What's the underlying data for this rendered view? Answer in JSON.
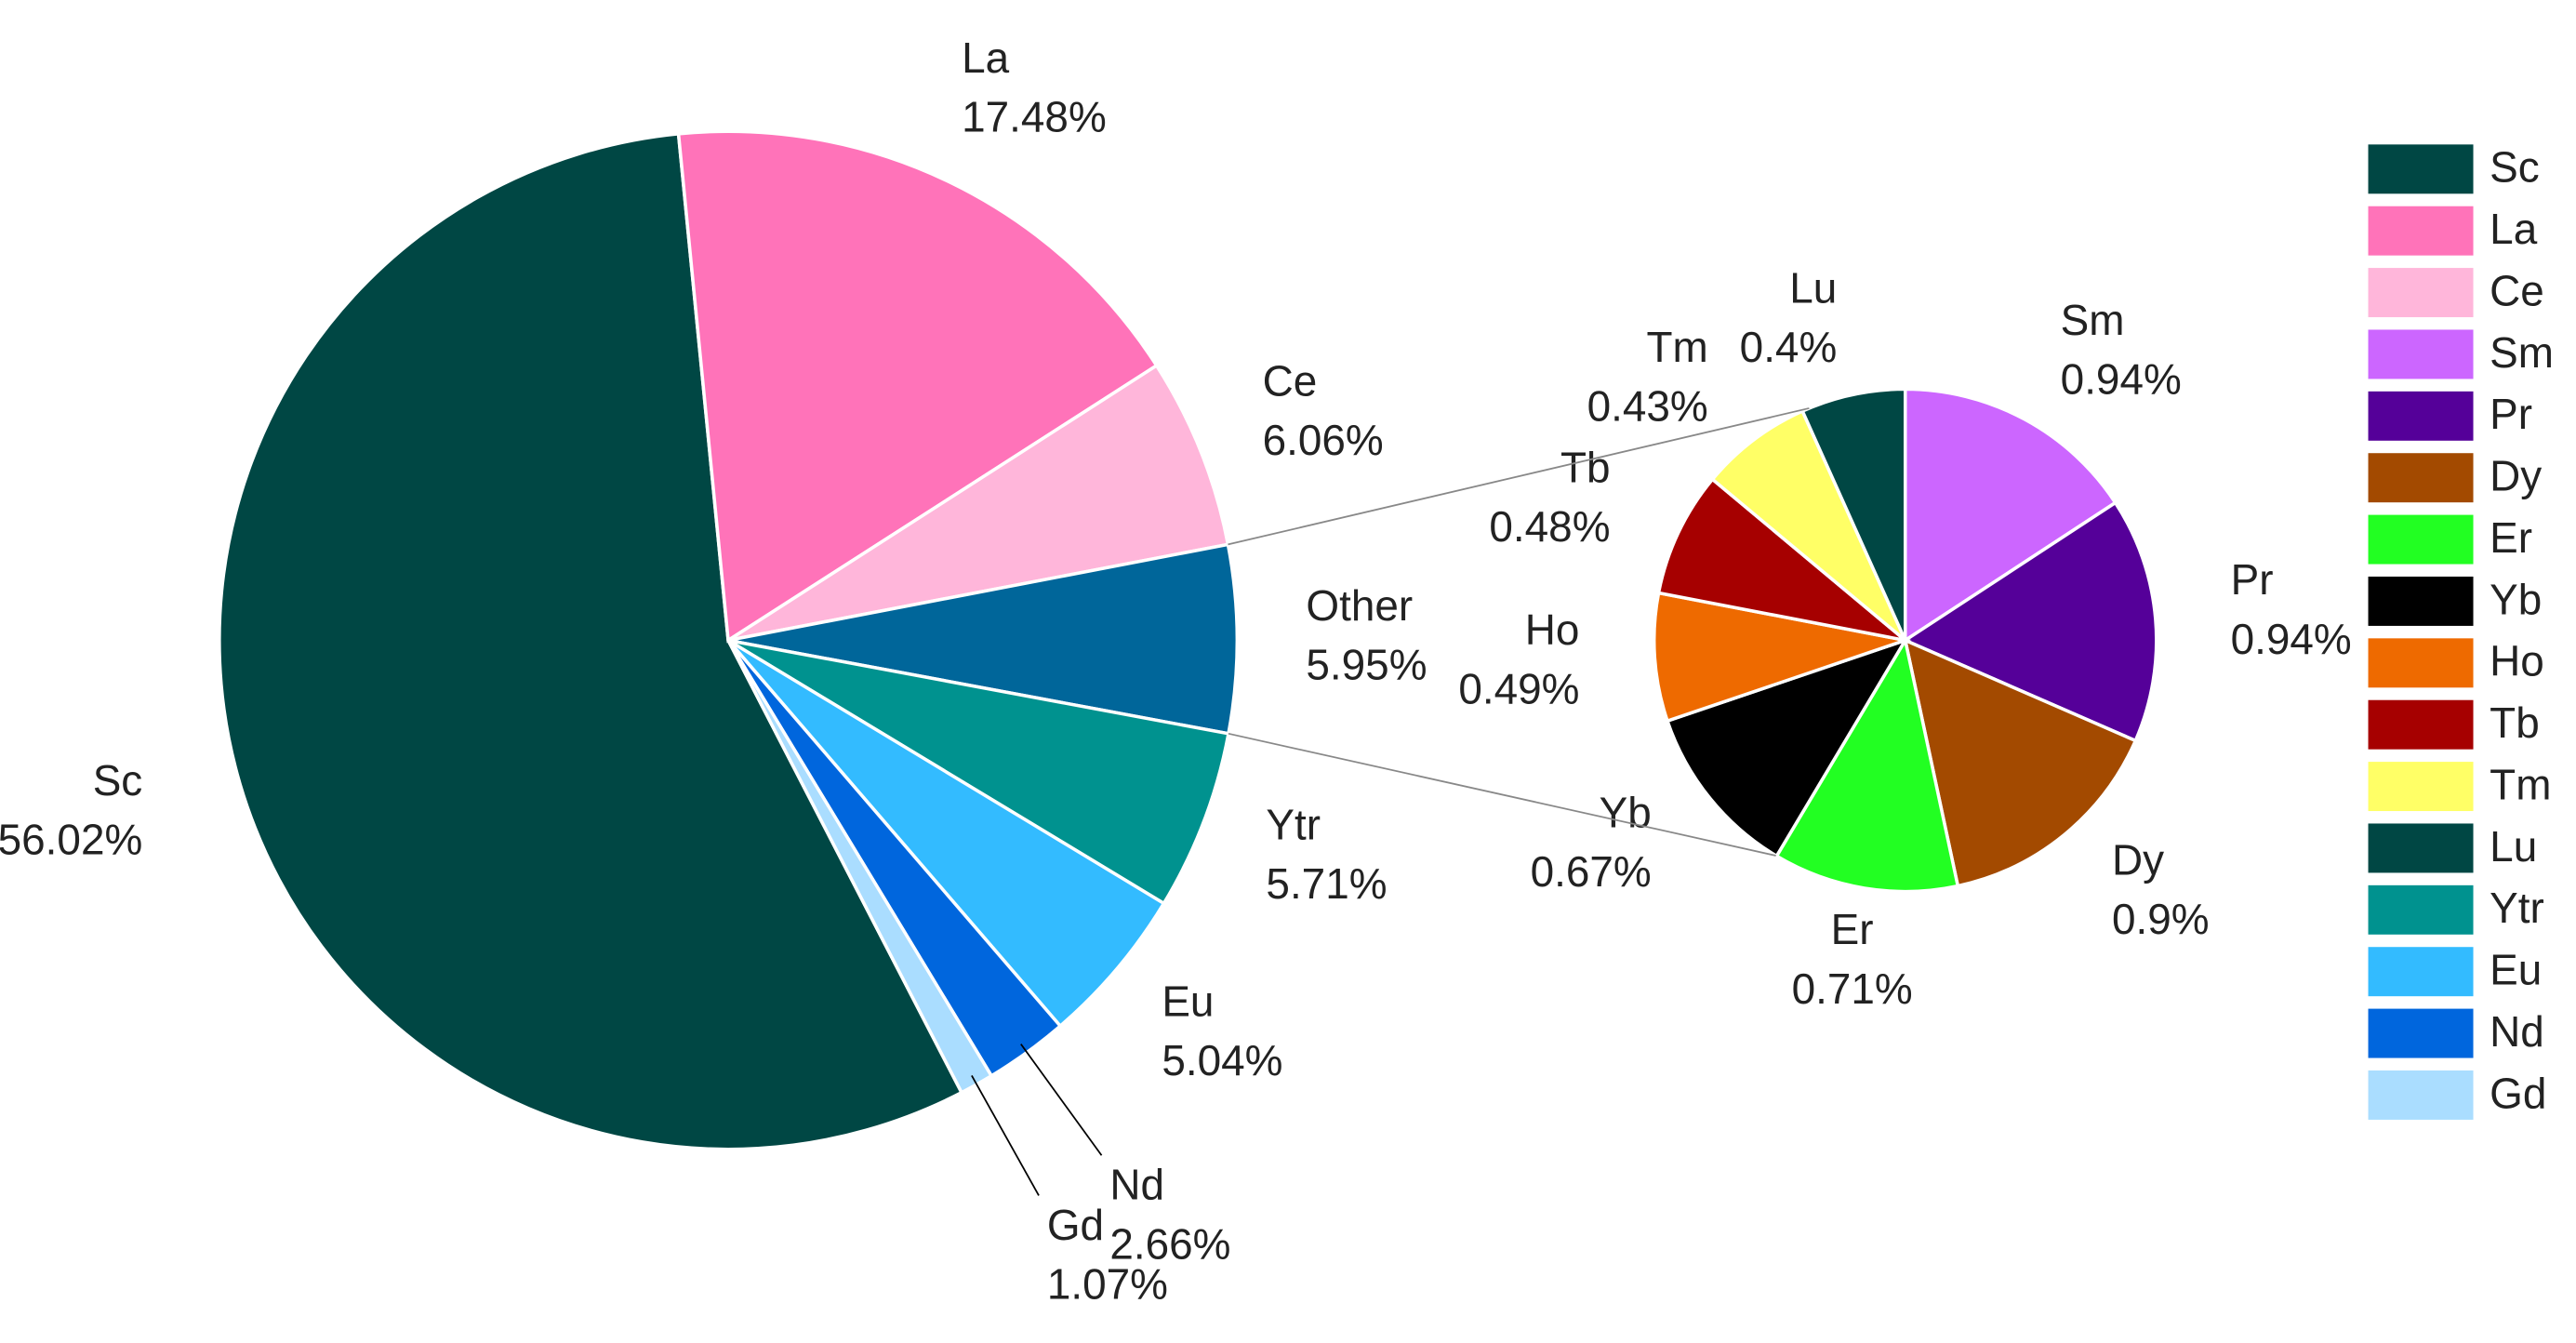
{
  "chart_data": [
    {
      "type": "pie",
      "categories": [
        "Sc",
        "La",
        "Ce",
        "Other",
        "Ytr",
        "Eu",
        "Nd",
        "Gd"
      ],
      "values": [
        56.02,
        17.48,
        6.06,
        5.95,
        5.71,
        5.04,
        2.66,
        1.07
      ],
      "value_labels": [
        "56.02%",
        "17.48%",
        "6.06%",
        "5.95%",
        "5.71%",
        "5.04%",
        "2.66%",
        "1.07%"
      ],
      "colors": [
        "#004744",
        "#ff73b9",
        "#ffb6da",
        "#00669a",
        "#00928f",
        "#33bbff",
        "#0066dd",
        "#aaddff"
      ]
    },
    {
      "type": "pie",
      "categories": [
        "Sm",
        "Pr",
        "Dy",
        "Er",
        "Yb",
        "Ho",
        "Tb",
        "Tm",
        "Lu"
      ],
      "values": [
        0.94,
        0.94,
        0.9,
        0.71,
        0.67,
        0.49,
        0.48,
        0.43,
        0.4
      ],
      "value_labels": [
        "0.94%",
        "0.94%",
        "0.9%",
        "0.71%",
        "0.67%",
        "0.49%",
        "0.48%",
        "0.43%",
        "0.4%"
      ],
      "colors": [
        "#cc66ff",
        "#550099",
        "#a34a00",
        "#22ff22",
        "#000000",
        "#ee6a00",
        "#a60000",
        "#ffff66",
        "#004744"
      ]
    }
  ]
}
